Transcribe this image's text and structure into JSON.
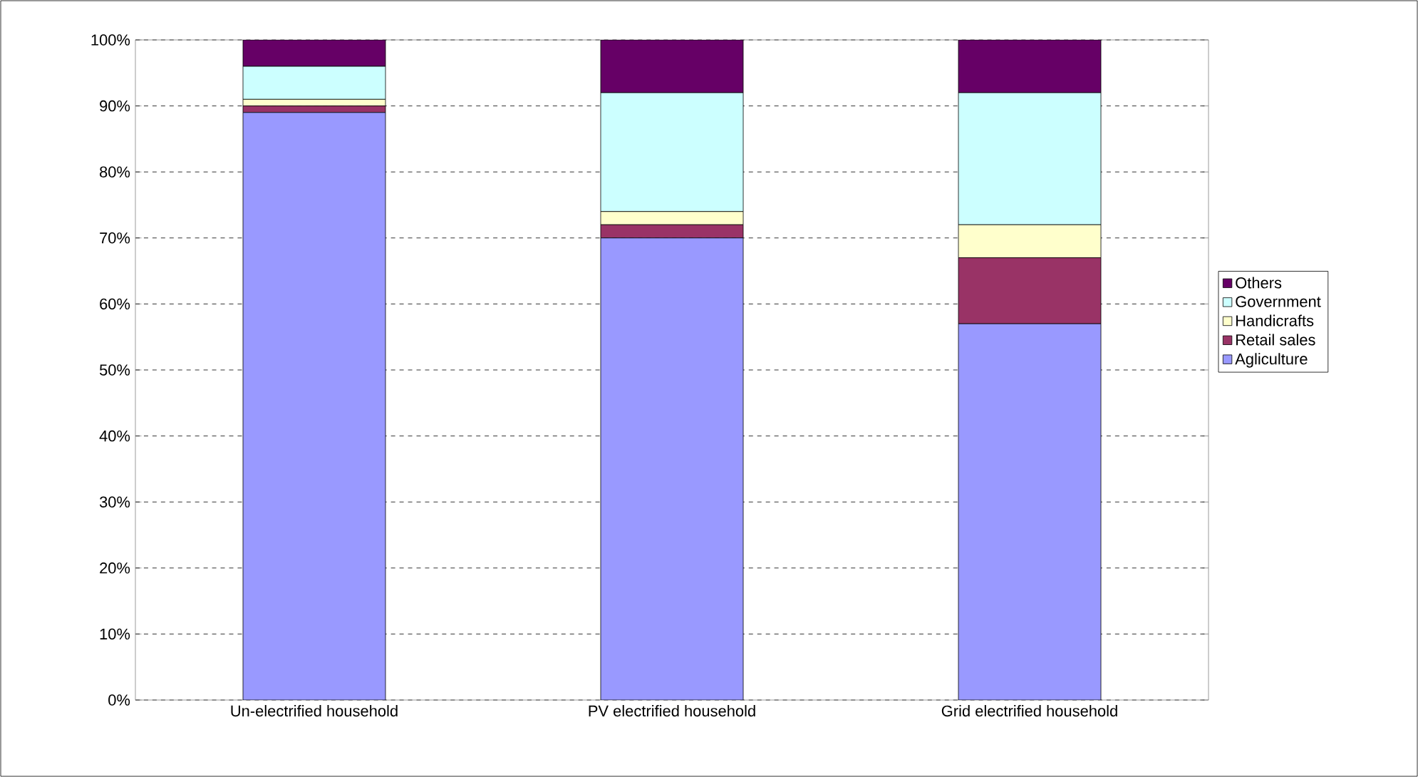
{
  "chart_data": {
    "type": "bar",
    "stacked": true,
    "categories": [
      "Un-electrified household",
      "PV electrified household",
      "Grid electrified household"
    ],
    "series": [
      {
        "name": "Agliculture",
        "color": "#9999ff",
        "values": [
          89,
          70,
          57
        ]
      },
      {
        "name": "Retail sales",
        "color": "#993366",
        "values": [
          1,
          2,
          10
        ]
      },
      {
        "name": "Handicrafts",
        "color": "#ffffcc",
        "values": [
          1,
          2,
          5
        ]
      },
      {
        "name": "Government",
        "color": "#ccffff",
        "values": [
          5,
          18,
          20
        ]
      },
      {
        "name": "Others",
        "color": "#660066",
        "values": [
          4,
          8,
          8
        ]
      }
    ],
    "ylim": [
      0,
      100
    ],
    "yticks": [
      {
        "value": 0,
        "label": "0%"
      },
      {
        "value": 10,
        "label": "10%"
      },
      {
        "value": 20,
        "label": "20%"
      },
      {
        "value": 30,
        "label": "30%"
      },
      {
        "value": 40,
        "label": "40%"
      },
      {
        "value": 50,
        "label": "50%"
      },
      {
        "value": 60,
        "label": "60%"
      },
      {
        "value": 70,
        "label": "70%"
      },
      {
        "value": 80,
        "label": "80%"
      },
      {
        "value": 90,
        "label": "90%"
      },
      {
        "value": 100,
        "label": "100%"
      }
    ],
    "grid": "y",
    "legend": "right"
  }
}
